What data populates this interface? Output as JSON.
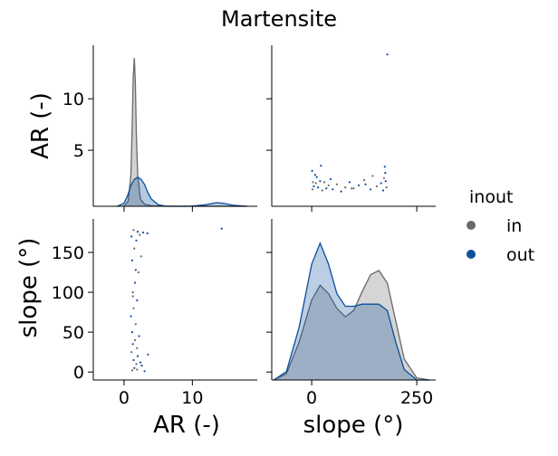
{
  "chart_data": {
    "type": "pairplot",
    "title": "Martensite",
    "variables": [
      "AR (-)",
      "slope (°)"
    ],
    "hue": {
      "title": "inout",
      "levels": [
        {
          "name": "in",
          "color": "#696969"
        },
        {
          "name": "out",
          "color": "#0b4f9c"
        }
      ]
    },
    "axes": {
      "ar": {
        "label": "AR (-)",
        "lim": [
          -4.5,
          19.5
        ],
        "ticks": [
          0,
          10
        ],
        "diag_ticks": [
          5,
          10
        ]
      },
      "slope": {
        "label": "slope (°)",
        "lim": [
          -10,
          192
        ],
        "ticks": [
          0,
          50,
          100,
          150
        ],
        "diag_lim": [
          -95,
          295
        ],
        "diag_ticks": [
          0,
          250
        ]
      }
    },
    "kde": {
      "ar": {
        "ylim": [
          0,
          15
        ],
        "in": {
          "x": [
            0.0,
            0.6,
            1.0,
            1.2,
            1.35,
            1.5,
            1.65,
            1.8,
            2.0,
            2.4,
            3.0,
            4.0,
            6.0,
            10.0,
            14.0,
            18.0
          ],
          "y": [
            0.0,
            0.5,
            3.0,
            8.0,
            12.5,
            14.3,
            12.0,
            7.0,
            3.0,
            0.7,
            0.2,
            0.05,
            0.0,
            0.0,
            0.0,
            0.0
          ]
        },
        "out": {
          "x": [
            -1.0,
            0.0,
            0.5,
            1.0,
            1.5,
            2.0,
            2.5,
            3.0,
            3.5,
            4.0,
            5.0,
            6.0,
            8.0,
            10.0,
            12.0,
            13.5,
            14.5,
            16.0,
            18.0
          ],
          "y": [
            0.0,
            0.3,
            1.0,
            2.0,
            2.6,
            2.8,
            2.6,
            2.1,
            1.3,
            0.7,
            0.15,
            0.02,
            0.0,
            0.02,
            0.15,
            0.35,
            0.3,
            0.1,
            0.0
          ]
        }
      },
      "slope": {
        "ylim": [
          0,
          0.0055
        ],
        "in": {
          "x": [
            -90,
            -60,
            -30,
            0,
            20,
            40,
            60,
            80,
            100,
            120,
            140,
            160,
            180,
            200,
            220,
            250,
            280
          ],
          "y": [
            0.0,
            0.0003,
            0.0018,
            0.0038,
            0.0045,
            0.0041,
            0.0034,
            0.003,
            0.0033,
            0.0042,
            0.005,
            0.0052,
            0.0046,
            0.0028,
            0.001,
            0.0001,
            0.0
          ]
        },
        "out": {
          "x": [
            -90,
            -60,
            -30,
            0,
            20,
            40,
            60,
            80,
            100,
            120,
            140,
            160,
            180,
            200,
            220,
            250,
            280
          ],
          "y": [
            0.0,
            0.0004,
            0.0025,
            0.0055,
            0.0065,
            0.0055,
            0.0041,
            0.0035,
            0.0035,
            0.0036,
            0.0036,
            0.0036,
            0.0033,
            0.0018,
            0.0005,
            0.0,
            0.0
          ]
        }
      }
    },
    "scatter_points": [
      {
        "ar": 1.2,
        "slope": 2,
        "hue": "in"
      },
      {
        "ar": 1.5,
        "slope": 5,
        "hue": "out"
      },
      {
        "ar": 1.8,
        "slope": 10,
        "hue": "in"
      },
      {
        "ar": 1.4,
        "slope": 15,
        "hue": "out"
      },
      {
        "ar": 2.0,
        "slope": 20,
        "hue": "out"
      },
      {
        "ar": 1.1,
        "slope": 25,
        "hue": "in"
      },
      {
        "ar": 2.4,
        "slope": 12,
        "hue": "out"
      },
      {
        "ar": 1.9,
        "slope": 30,
        "hue": "in"
      },
      {
        "ar": 1.3,
        "slope": 35,
        "hue": "out"
      },
      {
        "ar": 2.6,
        "slope": 8,
        "hue": "out"
      },
      {
        "ar": 1.6,
        "slope": 40,
        "hue": "in"
      },
      {
        "ar": 1.2,
        "slope": 50,
        "hue": "out"
      },
      {
        "ar": 1.7,
        "slope": 60,
        "hue": "in"
      },
      {
        "ar": 1.0,
        "slope": 70,
        "hue": "out"
      },
      {
        "ar": 1.4,
        "slope": 80,
        "hue": "in"
      },
      {
        "ar": 1.9,
        "slope": 90,
        "hue": "out"
      },
      {
        "ar": 1.3,
        "slope": 100,
        "hue": "in"
      },
      {
        "ar": 1.6,
        "slope": 112,
        "hue": "out"
      },
      {
        "ar": 2.1,
        "slope": 125,
        "hue": "in"
      },
      {
        "ar": 1.2,
        "slope": 140,
        "hue": "out"
      },
      {
        "ar": 1.5,
        "slope": 155,
        "hue": "in"
      },
      {
        "ar": 1.8,
        "slope": 165,
        "hue": "out"
      },
      {
        "ar": 2.3,
        "slope": 172,
        "hue": "in"
      },
      {
        "ar": 2.8,
        "slope": 175,
        "hue": "out"
      },
      {
        "ar": 1.4,
        "slope": 178,
        "hue": "in"
      },
      {
        "ar": 1.1,
        "slope": 170,
        "hue": "out"
      },
      {
        "ar": 2.0,
        "slope": 176,
        "hue": "out"
      },
      {
        "ar": 3.5,
        "slope": 22,
        "hue": "out"
      },
      {
        "ar": 3.0,
        "slope": 1,
        "hue": "out"
      },
      {
        "ar": 2.5,
        "slope": 145,
        "hue": "in"
      },
      {
        "ar": 1.7,
        "slope": 128,
        "hue": "out"
      },
      {
        "ar": 1.3,
        "slope": 95,
        "hue": "in"
      },
      {
        "ar": 2.2,
        "slope": 45,
        "hue": "out"
      },
      {
        "ar": 1.9,
        "slope": 3,
        "hue": "in"
      },
      {
        "ar": 3.4,
        "slope": 174,
        "hue": "out"
      },
      {
        "ar": 14.3,
        "slope": 180,
        "hue": "out"
      }
    ]
  }
}
